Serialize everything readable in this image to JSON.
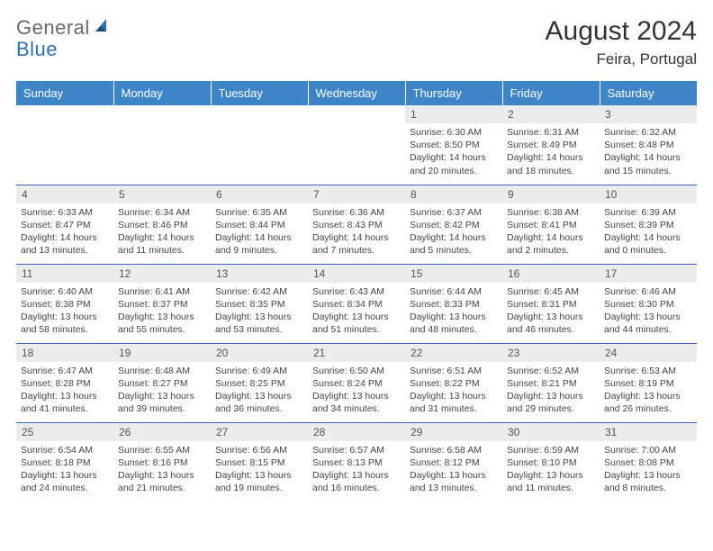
{
  "brand": {
    "part1": "General",
    "part2": "Blue"
  },
  "title": "August 2024",
  "location": "Feira, Portugal",
  "colors": {
    "header_bg": "#3d85c6",
    "header_text": "#ffffff",
    "daynum_bg": "#ececec",
    "border": "#2f6fb0",
    "logo_gray": "#6b6b6b",
    "logo_blue": "#2f6fb0"
  },
  "weekdays": [
    "Sunday",
    "Monday",
    "Tuesday",
    "Wednesday",
    "Thursday",
    "Friday",
    "Saturday"
  ],
  "weeks": [
    [
      {
        "n": "",
        "sr": "",
        "ss": "",
        "dl": ""
      },
      {
        "n": "",
        "sr": "",
        "ss": "",
        "dl": ""
      },
      {
        "n": "",
        "sr": "",
        "ss": "",
        "dl": ""
      },
      {
        "n": "",
        "sr": "",
        "ss": "",
        "dl": ""
      },
      {
        "n": "1",
        "sr": "Sunrise: 6:30 AM",
        "ss": "Sunset: 8:50 PM",
        "dl": "Daylight: 14 hours and 20 minutes."
      },
      {
        "n": "2",
        "sr": "Sunrise: 6:31 AM",
        "ss": "Sunset: 8:49 PM",
        "dl": "Daylight: 14 hours and 18 minutes."
      },
      {
        "n": "3",
        "sr": "Sunrise: 6:32 AM",
        "ss": "Sunset: 8:48 PM",
        "dl": "Daylight: 14 hours and 15 minutes."
      }
    ],
    [
      {
        "n": "4",
        "sr": "Sunrise: 6:33 AM",
        "ss": "Sunset: 8:47 PM",
        "dl": "Daylight: 14 hours and 13 minutes."
      },
      {
        "n": "5",
        "sr": "Sunrise: 6:34 AM",
        "ss": "Sunset: 8:46 PM",
        "dl": "Daylight: 14 hours and 11 minutes."
      },
      {
        "n": "6",
        "sr": "Sunrise: 6:35 AM",
        "ss": "Sunset: 8:44 PM",
        "dl": "Daylight: 14 hours and 9 minutes."
      },
      {
        "n": "7",
        "sr": "Sunrise: 6:36 AM",
        "ss": "Sunset: 8:43 PM",
        "dl": "Daylight: 14 hours and 7 minutes."
      },
      {
        "n": "8",
        "sr": "Sunrise: 6:37 AM",
        "ss": "Sunset: 8:42 PM",
        "dl": "Daylight: 14 hours and 5 minutes."
      },
      {
        "n": "9",
        "sr": "Sunrise: 6:38 AM",
        "ss": "Sunset: 8:41 PM",
        "dl": "Daylight: 14 hours and 2 minutes."
      },
      {
        "n": "10",
        "sr": "Sunrise: 6:39 AM",
        "ss": "Sunset: 8:39 PM",
        "dl": "Daylight: 14 hours and 0 minutes."
      }
    ],
    [
      {
        "n": "11",
        "sr": "Sunrise: 6:40 AM",
        "ss": "Sunset: 8:38 PM",
        "dl": "Daylight: 13 hours and 58 minutes."
      },
      {
        "n": "12",
        "sr": "Sunrise: 6:41 AM",
        "ss": "Sunset: 8:37 PM",
        "dl": "Daylight: 13 hours and 55 minutes."
      },
      {
        "n": "13",
        "sr": "Sunrise: 6:42 AM",
        "ss": "Sunset: 8:35 PM",
        "dl": "Daylight: 13 hours and 53 minutes."
      },
      {
        "n": "14",
        "sr": "Sunrise: 6:43 AM",
        "ss": "Sunset: 8:34 PM",
        "dl": "Daylight: 13 hours and 51 minutes."
      },
      {
        "n": "15",
        "sr": "Sunrise: 6:44 AM",
        "ss": "Sunset: 8:33 PM",
        "dl": "Daylight: 13 hours and 48 minutes."
      },
      {
        "n": "16",
        "sr": "Sunrise: 6:45 AM",
        "ss": "Sunset: 8:31 PM",
        "dl": "Daylight: 13 hours and 46 minutes."
      },
      {
        "n": "17",
        "sr": "Sunrise: 6:46 AM",
        "ss": "Sunset: 8:30 PM",
        "dl": "Daylight: 13 hours and 44 minutes."
      }
    ],
    [
      {
        "n": "18",
        "sr": "Sunrise: 6:47 AM",
        "ss": "Sunset: 8:28 PM",
        "dl": "Daylight: 13 hours and 41 minutes."
      },
      {
        "n": "19",
        "sr": "Sunrise: 6:48 AM",
        "ss": "Sunset: 8:27 PM",
        "dl": "Daylight: 13 hours and 39 minutes."
      },
      {
        "n": "20",
        "sr": "Sunrise: 6:49 AM",
        "ss": "Sunset: 8:25 PM",
        "dl": "Daylight: 13 hours and 36 minutes."
      },
      {
        "n": "21",
        "sr": "Sunrise: 6:50 AM",
        "ss": "Sunset: 8:24 PM",
        "dl": "Daylight: 13 hours and 34 minutes."
      },
      {
        "n": "22",
        "sr": "Sunrise: 6:51 AM",
        "ss": "Sunset: 8:22 PM",
        "dl": "Daylight: 13 hours and 31 minutes."
      },
      {
        "n": "23",
        "sr": "Sunrise: 6:52 AM",
        "ss": "Sunset: 8:21 PM",
        "dl": "Daylight: 13 hours and 29 minutes."
      },
      {
        "n": "24",
        "sr": "Sunrise: 6:53 AM",
        "ss": "Sunset: 8:19 PM",
        "dl": "Daylight: 13 hours and 26 minutes."
      }
    ],
    [
      {
        "n": "25",
        "sr": "Sunrise: 6:54 AM",
        "ss": "Sunset: 8:18 PM",
        "dl": "Daylight: 13 hours and 24 minutes."
      },
      {
        "n": "26",
        "sr": "Sunrise: 6:55 AM",
        "ss": "Sunset: 8:16 PM",
        "dl": "Daylight: 13 hours and 21 minutes."
      },
      {
        "n": "27",
        "sr": "Sunrise: 6:56 AM",
        "ss": "Sunset: 8:15 PM",
        "dl": "Daylight: 13 hours and 19 minutes."
      },
      {
        "n": "28",
        "sr": "Sunrise: 6:57 AM",
        "ss": "Sunset: 8:13 PM",
        "dl": "Daylight: 13 hours and 16 minutes."
      },
      {
        "n": "29",
        "sr": "Sunrise: 6:58 AM",
        "ss": "Sunset: 8:12 PM",
        "dl": "Daylight: 13 hours and 13 minutes."
      },
      {
        "n": "30",
        "sr": "Sunrise: 6:59 AM",
        "ss": "Sunset: 8:10 PM",
        "dl": "Daylight: 13 hours and 11 minutes."
      },
      {
        "n": "31",
        "sr": "Sunrise: 7:00 AM",
        "ss": "Sunset: 8:08 PM",
        "dl": "Daylight: 13 hours and 8 minutes."
      }
    ]
  ]
}
